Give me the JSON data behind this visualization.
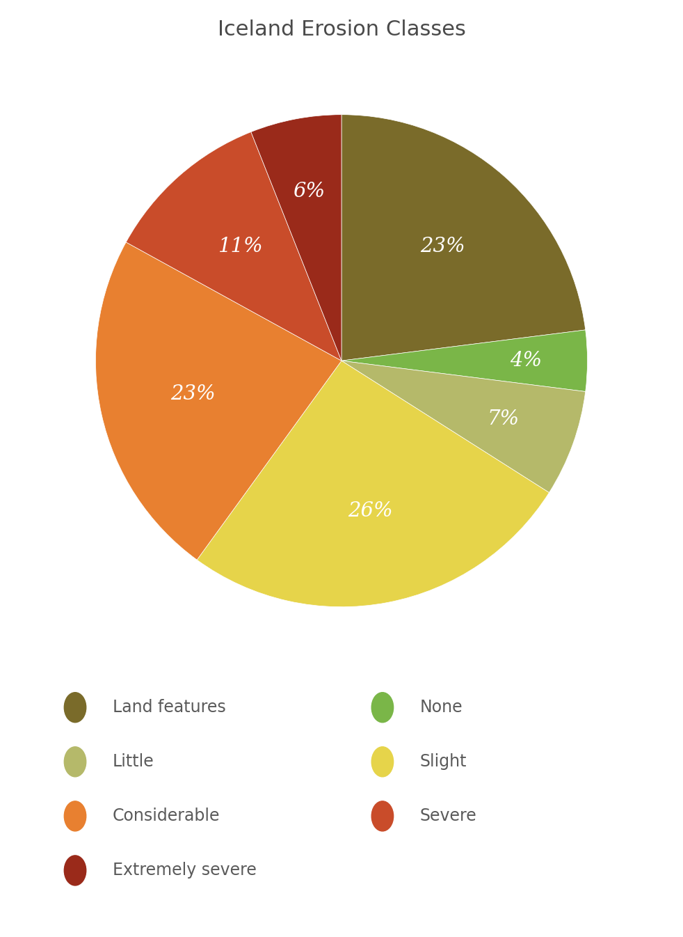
{
  "title": "Iceland Erosion Classes",
  "title_fontsize": 22,
  "title_color": "#4a4a4a",
  "slices": [
    {
      "label": "Land features",
      "value": 23,
      "color": "#7a6b2a"
    },
    {
      "label": "None",
      "value": 4,
      "color": "#7ab648"
    },
    {
      "label": "Little",
      "value": 7,
      "color": "#b5b96a"
    },
    {
      "label": "Slight",
      "value": 26,
      "color": "#e6d44a"
    },
    {
      "label": "Considerable",
      "value": 23,
      "color": "#e88030"
    },
    {
      "label": "Severe",
      "value": 11,
      "color": "#c94c2a"
    },
    {
      "label": "Extremely severe",
      "value": 6,
      "color": "#9a2a1a"
    }
  ],
  "legend_fontsize": 17,
  "legend_text_color": "#5a5a5a",
  "pct_fontsize": 21,
  "startangle": 90,
  "background_color": "#ffffff",
  "legend_data": [
    [
      "Land features",
      "left"
    ],
    [
      "Little",
      "left"
    ],
    [
      "Considerable",
      "left"
    ],
    [
      "Extremely severe",
      "left"
    ],
    [
      "None",
      "right"
    ],
    [
      "Slight",
      "right"
    ],
    [
      "Severe",
      "right"
    ]
  ]
}
